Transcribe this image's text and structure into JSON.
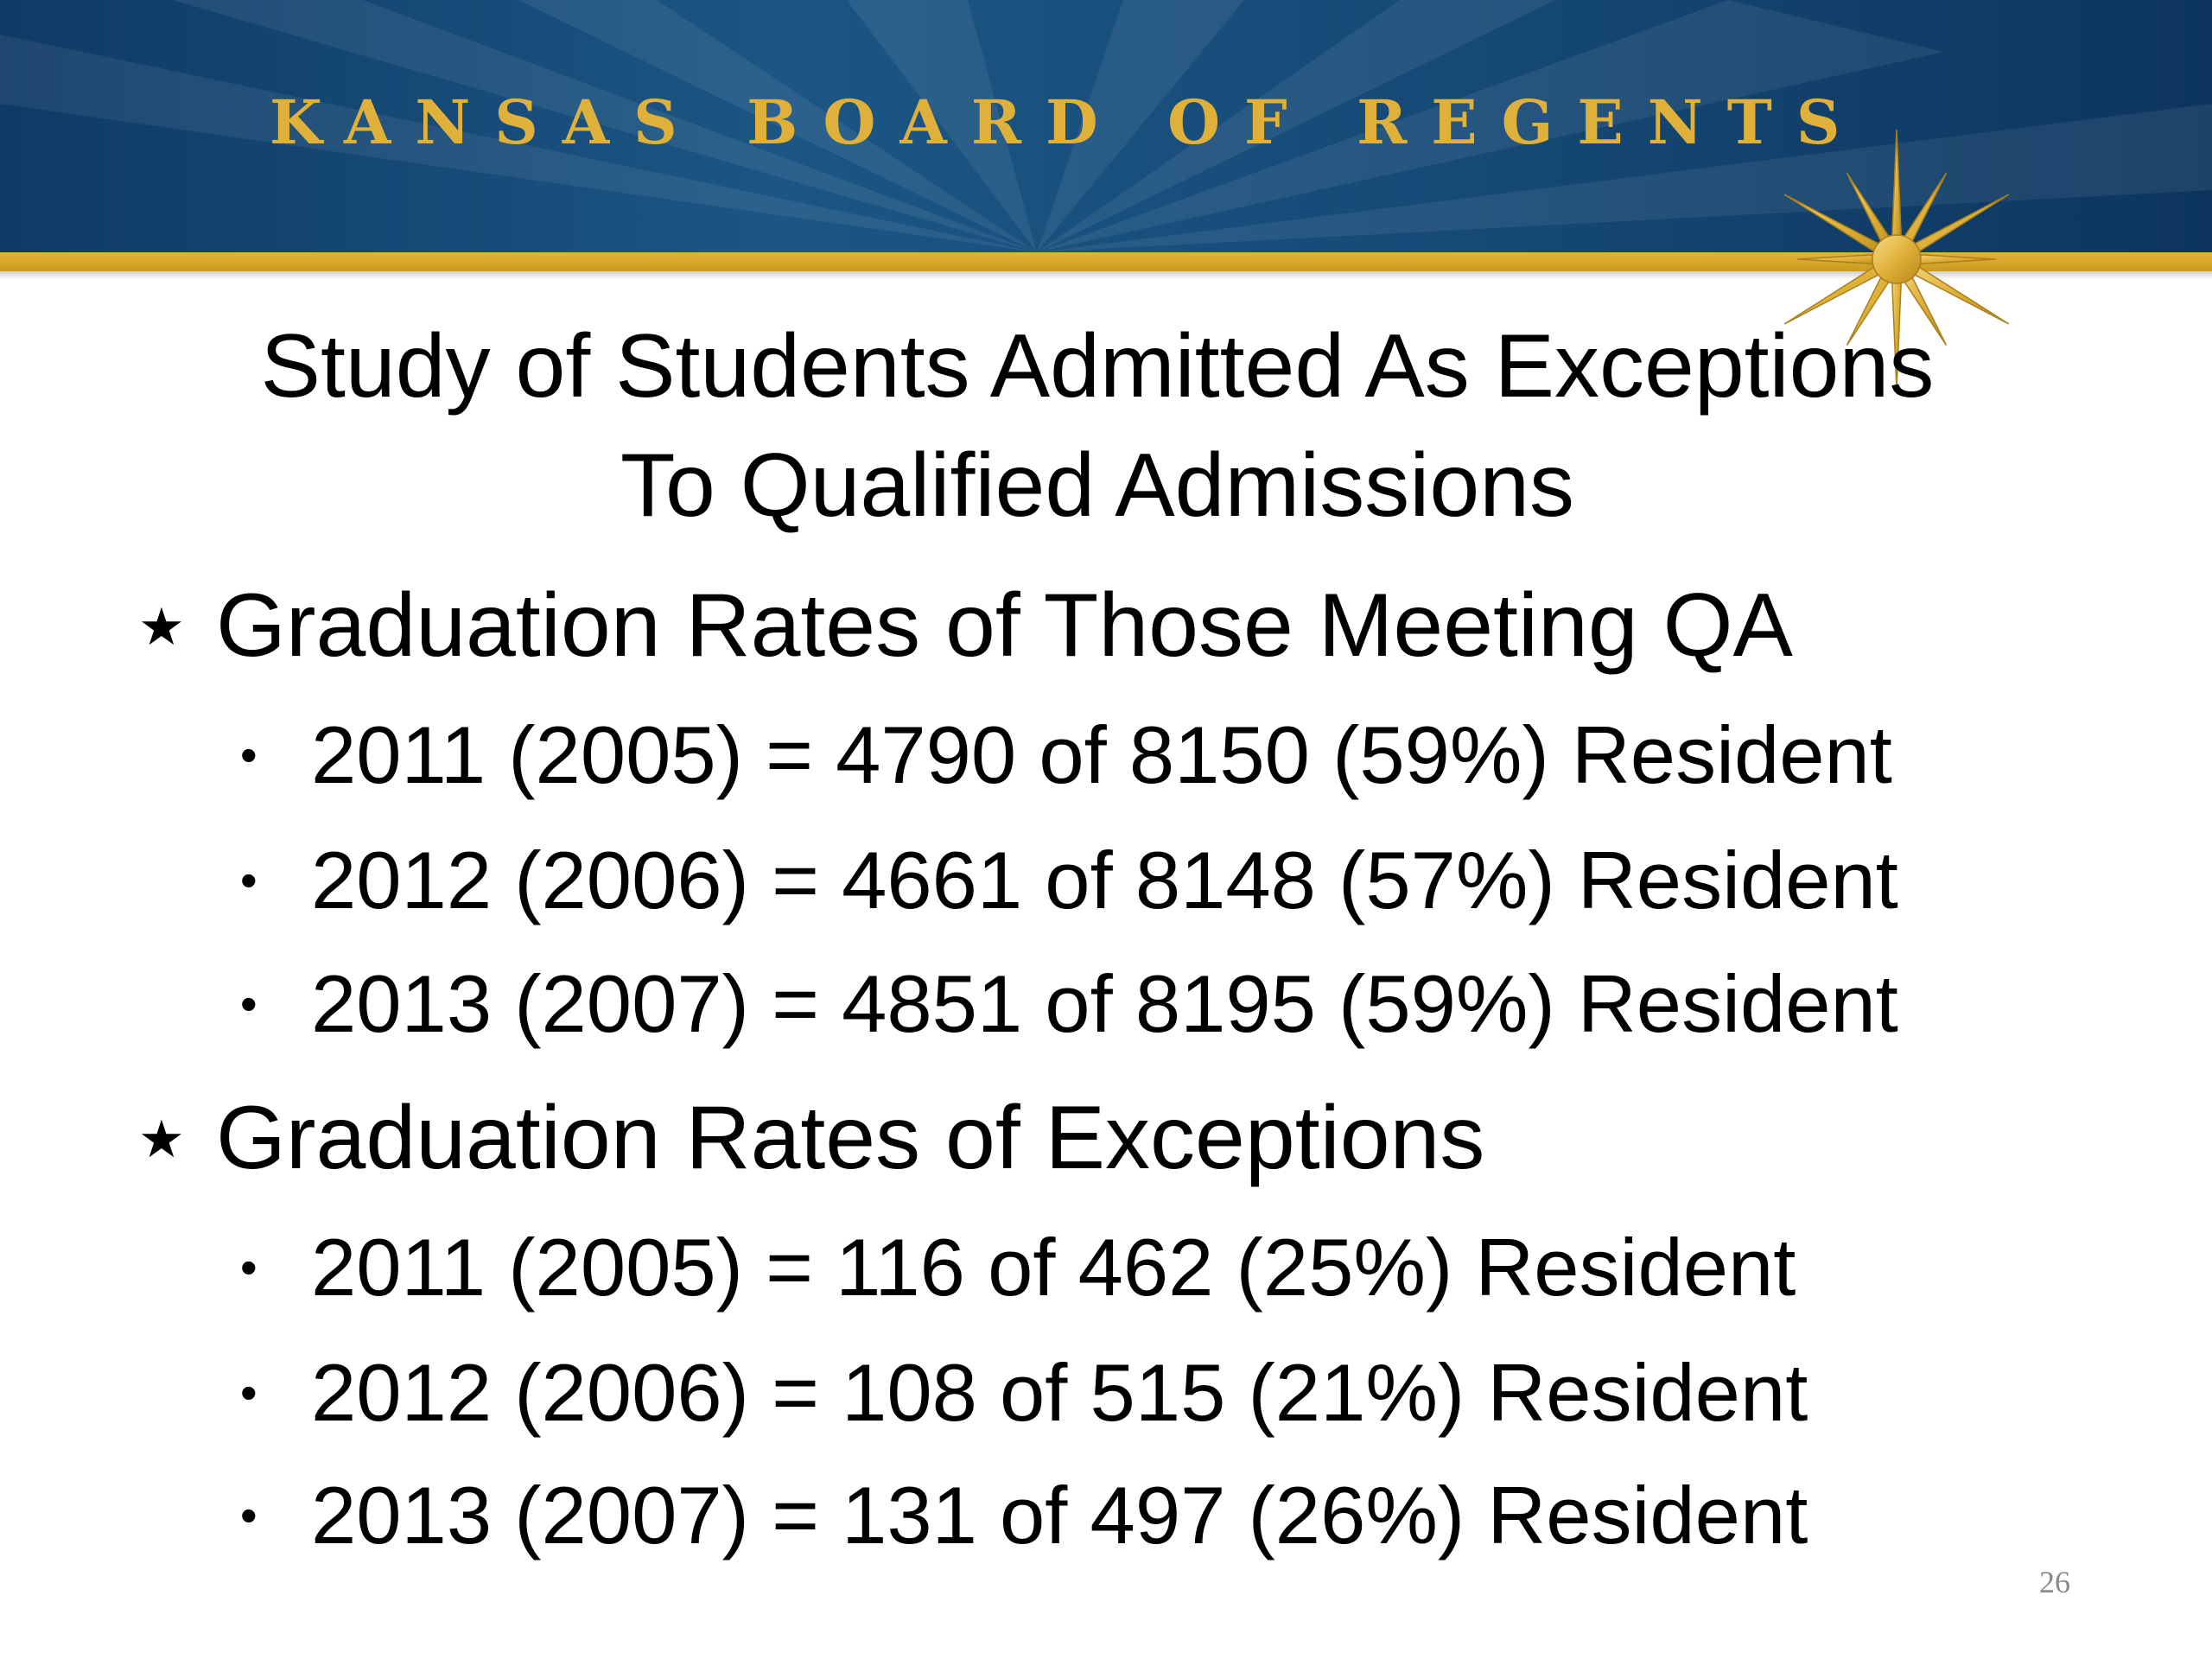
{
  "header": {
    "org_name": "KANSAS BOARD OF REGENTS",
    "logo_icon": "gold-star-icon",
    "colors": {
      "banner": "#164a77",
      "gold": "#e0b13a"
    }
  },
  "title": {
    "line1": "Study of Students Admitted As Exceptions",
    "line2": "To Qualified Admissions"
  },
  "sections": [
    {
      "heading": "Graduation Rates of Those Meeting QA",
      "items": [
        "2011 (2005) = 4790 of 8150 (59%) Resident",
        "2012 (2006) = 4661 of 8148 (57%) Resident",
        "2013 (2007) = 4851 of 8195 (59%) Resident"
      ]
    },
    {
      "heading": "Graduation Rates of Exceptions",
      "items": [
        "2011 (2005) = 116 of 462 (25%) Resident",
        "2012 (2006) = 108 of 515 (21%) Resident",
        "2013 (2007) = 131 of 497 (26%) Resident"
      ]
    }
  ],
  "markers": {
    "level1": "★",
    "level2": "•"
  },
  "page_number": "26"
}
